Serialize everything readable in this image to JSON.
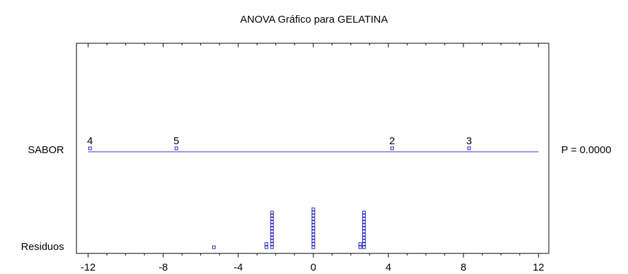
{
  "chart_data": {
    "type": "scatter",
    "title": "ANOVA Gráfico para GELATINA",
    "xlim": [
      -12,
      12
    ],
    "x_ticks": [
      -12,
      -8,
      -4,
      0,
      4,
      8,
      12
    ],
    "factor": {
      "label": "SABOR",
      "p_value_label": "P = 0.0000",
      "levels": [
        {
          "name": "4",
          "x": -11.9
        },
        {
          "name": "5",
          "x": -7.3
        },
        {
          "name": "2",
          "x": 4.2
        },
        {
          "name": "3",
          "x": 8.3
        }
      ]
    },
    "residuals": {
      "label": "Residuos",
      "columns": [
        {
          "x": -5.3,
          "count": 1
        },
        {
          "x": -2.5,
          "count": 2
        },
        {
          "x": -2.2,
          "count": 12
        },
        {
          "x": 0.0,
          "count": 13
        },
        {
          "x": 2.5,
          "count": 2
        },
        {
          "x": 2.7,
          "count": 12
        }
      ]
    },
    "colors": {
      "markers": "#1f1fbf",
      "factor_line": "#3333cc",
      "axes": "#000000"
    }
  }
}
